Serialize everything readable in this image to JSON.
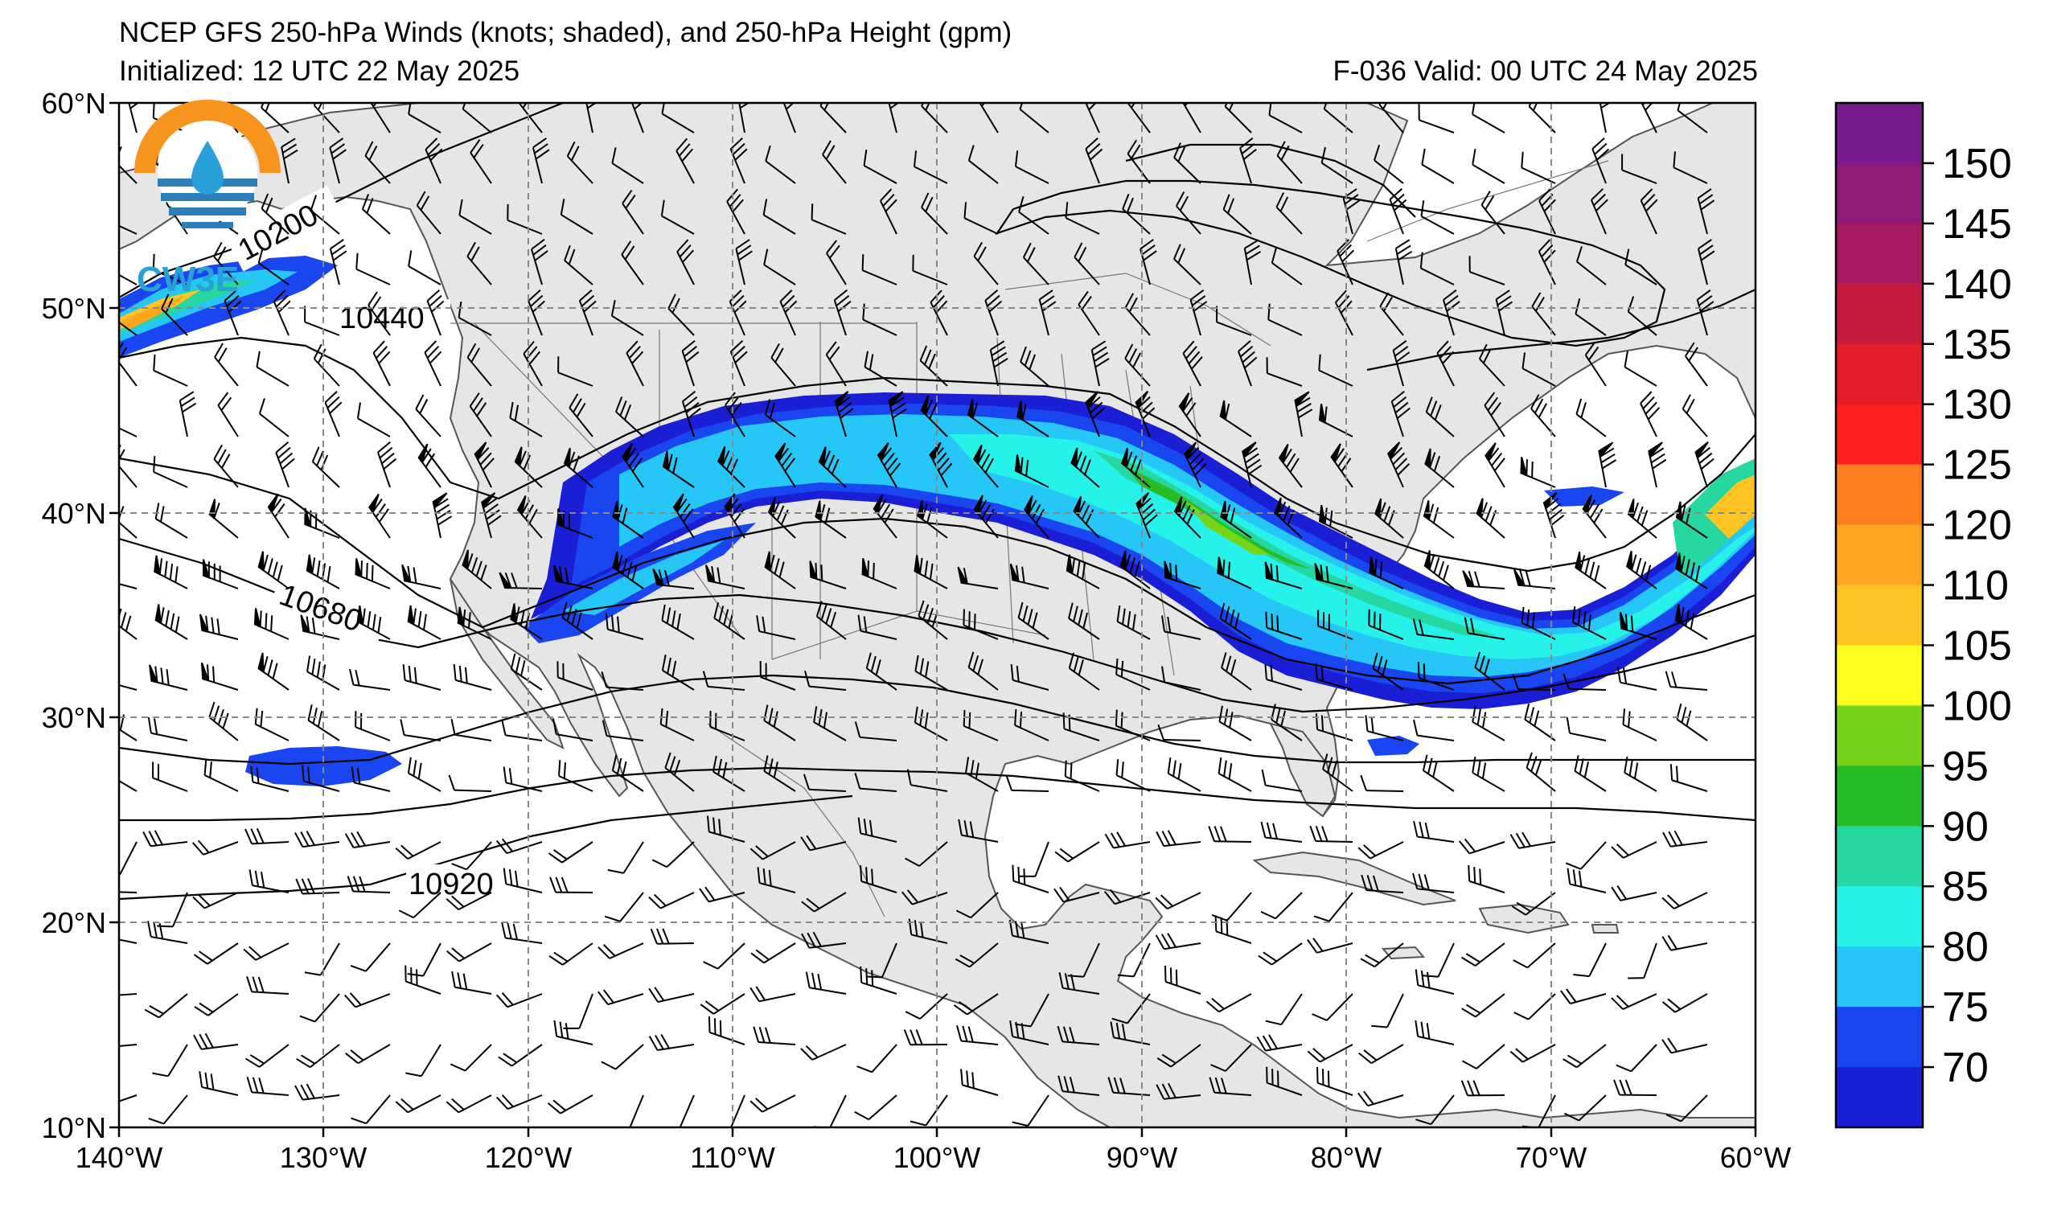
{
  "header": {
    "title": "NCEP GFS 250-hPa Winds (knots; shaded), and 250-hPa Height (gpm)",
    "initialized": "Initialized: 12 UTC 22 May 2025",
    "valid": "F-036  Valid: 00 UTC 24 May 2025"
  },
  "logo": {
    "text": "CW3E"
  },
  "axes": {
    "lat_labels": [
      "60°N",
      "50°N",
      "40°N",
      "30°N",
      "20°N",
      "10°N"
    ],
    "lon_labels": [
      "140°W",
      "130°W",
      "120°W",
      "110°W",
      "100°W",
      "90°W",
      "80°W",
      "70°W",
      "60°W"
    ]
  },
  "map": {
    "projection": "equirectangular",
    "lon_range": [
      -140,
      -60
    ],
    "lat_range": [
      10,
      60
    ],
    "gridlines": "dashed",
    "land_color": "#e6e6e6",
    "ocean_color": "#ffffff"
  },
  "contours": {
    "labels": [
      "10200",
      "10440",
      "10680",
      "10920"
    ]
  },
  "colorbar": {
    "labels": [
      "150",
      "145",
      "140",
      "135",
      "130",
      "125",
      "120",
      "110",
      "105",
      "100",
      "95",
      "90",
      "85",
      "80",
      "75",
      "70"
    ],
    "colors": [
      "#761a8c",
      "#8e1a7a",
      "#a51a62",
      "#c31a3e",
      "#e31c2a",
      "#ff2020",
      "#ff7f20",
      "#ffa51f",
      "#ffc424",
      "#ffff1f",
      "#78d41a",
      "#26bc26",
      "#26d7a1",
      "#27f2ea",
      "#26c6f7",
      "#1a46f2",
      "#1a1ed4"
    ]
  }
}
